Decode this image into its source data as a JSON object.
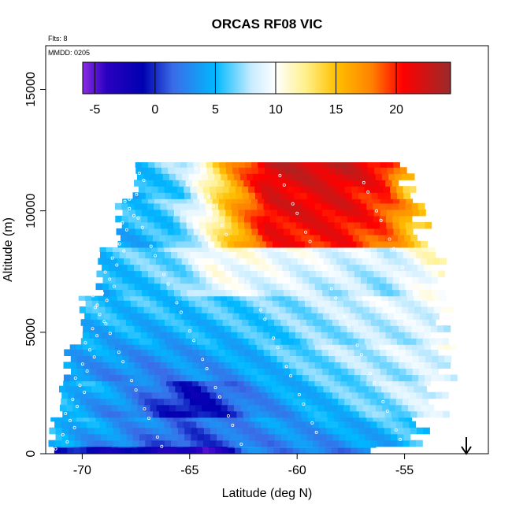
{
  "chart_data": {
    "type": "heatmap",
    "title": "ORCAS RF08 VIC",
    "xlabel": "Latitude (deg N)",
    "ylabel": "Altitude (m)",
    "notes": [
      "Flts: 8",
      "MMDD: 0205"
    ],
    "xlim": [
      -71.7,
      -51.1
    ],
    "ylim": [
      0,
      16800
    ],
    "x_ticks": [
      -70,
      -65,
      -60,
      -55
    ],
    "x_tick_labels": [
      "-70",
      "-65",
      "-60",
      "-55"
    ],
    "y_ticks": [
      0,
      5000,
      10000,
      15000
    ],
    "y_tick_labels": [
      "0",
      "5000",
      "10000",
      "15000"
    ],
    "colorbar": {
      "min": -6,
      "max": 24.5,
      "ticks": [
        -5,
        0,
        5,
        10,
        15,
        20
      ],
      "tick_labels": [
        "-5",
        "0",
        "5",
        "10",
        "15",
        "20"
      ],
      "gradient_stops": [
        {
          "value": -6,
          "color": "#8a2be2"
        },
        {
          "value": -4,
          "color": "#2a00c0"
        },
        {
          "value": -1,
          "color": "#0000b0"
        },
        {
          "value": 1.5,
          "color": "#3a6ce8"
        },
        {
          "value": 5,
          "color": "#00b8ff"
        },
        {
          "value": 8,
          "color": "#c8ecff"
        },
        {
          "value": 10,
          "color": "#ffffff"
        },
        {
          "value": 12.5,
          "color": "#fff08a"
        },
        {
          "value": 15,
          "color": "#ffc000"
        },
        {
          "value": 18,
          "color": "#ff8000"
        },
        {
          "value": 20.5,
          "color": "#ff0000"
        },
        {
          "value": 24.5,
          "color": "#9a2a2a"
        }
      ]
    },
    "value_labels_bands": [
      {
        "alt": [
          0,
          300
        ],
        "lat": [
          -71.3,
          -56.8
        ],
        "value": 1,
        "gradient": [
          [
            -71.3,
            0
          ],
          [
            -65.5,
            -2
          ],
          [
            -64.5,
            -5
          ],
          [
            -62.5,
            3
          ],
          [
            -56.8,
            3
          ]
        ]
      },
      {
        "alt": [
          300,
          1500
        ],
        "lat": [
          -71.4,
          -54.5
        ],
        "value": 4,
        "gradient": [
          [
            -71.4,
            5
          ],
          [
            -68,
            3
          ],
          [
            -65,
            1
          ],
          [
            -62,
            3
          ],
          [
            -58,
            4
          ],
          [
            -54.5,
            6
          ]
        ]
      },
      {
        "alt": [
          1500,
          3000
        ],
        "lat": [
          -71.0,
          -53.6
        ],
        "value": 3,
        "gradient": [
          [
            -71.0,
            5
          ],
          [
            -68,
            3
          ],
          [
            -65,
            -1
          ],
          [
            -62,
            3
          ],
          [
            -58,
            6
          ],
          [
            -53.6,
            9
          ]
        ]
      },
      {
        "alt": [
          3000,
          4500
        ],
        "lat": [
          -70.7,
          -53.2
        ],
        "value": 5,
        "gradient": [
          [
            -70.7,
            4
          ],
          [
            -67,
            3
          ],
          [
            -63,
            4
          ],
          [
            -59,
            7
          ],
          [
            -53.2,
            9
          ]
        ]
      },
      {
        "alt": [
          4500,
          6500
        ],
        "lat": [
          -70.0,
          -53.4
        ],
        "value": 5,
        "gradient": [
          [
            -70.0,
            5
          ],
          [
            -66,
            5
          ],
          [
            -62,
            6
          ],
          [
            -58,
            8
          ],
          [
            -53.4,
            9
          ]
        ]
      },
      {
        "alt": [
          6500,
          8500
        ],
        "lat": [
          -69.2,
          -53.6
        ],
        "value": 7,
        "gradient": [
          [
            -69.2,
            5
          ],
          [
            -65.5,
            7
          ],
          [
            -64,
            10
          ],
          [
            -60,
            9
          ],
          [
            -56,
            8
          ],
          [
            -53.6,
            11
          ]
        ]
      },
      {
        "alt": [
          8500,
          10500
        ],
        "lat": [
          -68.3,
          -54.4
        ],
        "value": 15,
        "gradient": [
          [
            -68.3,
            5
          ],
          [
            -66,
            6
          ],
          [
            -64.5,
            10
          ],
          [
            -63,
            16
          ],
          [
            -61.5,
            21
          ],
          [
            -58,
            21
          ],
          [
            -56,
            19
          ],
          [
            -54.4,
            14
          ]
        ]
      },
      {
        "alt": [
          10500,
          12000
        ],
        "lat": [
          -67.5,
          -55.0
        ],
        "value": 18,
        "gradient": [
          [
            -67.5,
            5
          ],
          [
            -65.5,
            7
          ],
          [
            -64.5,
            11
          ],
          [
            -63,
            17
          ],
          [
            -61.5,
            22
          ],
          [
            -58,
            22
          ],
          [
            -56,
            20
          ],
          [
            -55.0,
            15
          ]
        ]
      }
    ],
    "marker_note": "downward arrow at lat -53"
  }
}
